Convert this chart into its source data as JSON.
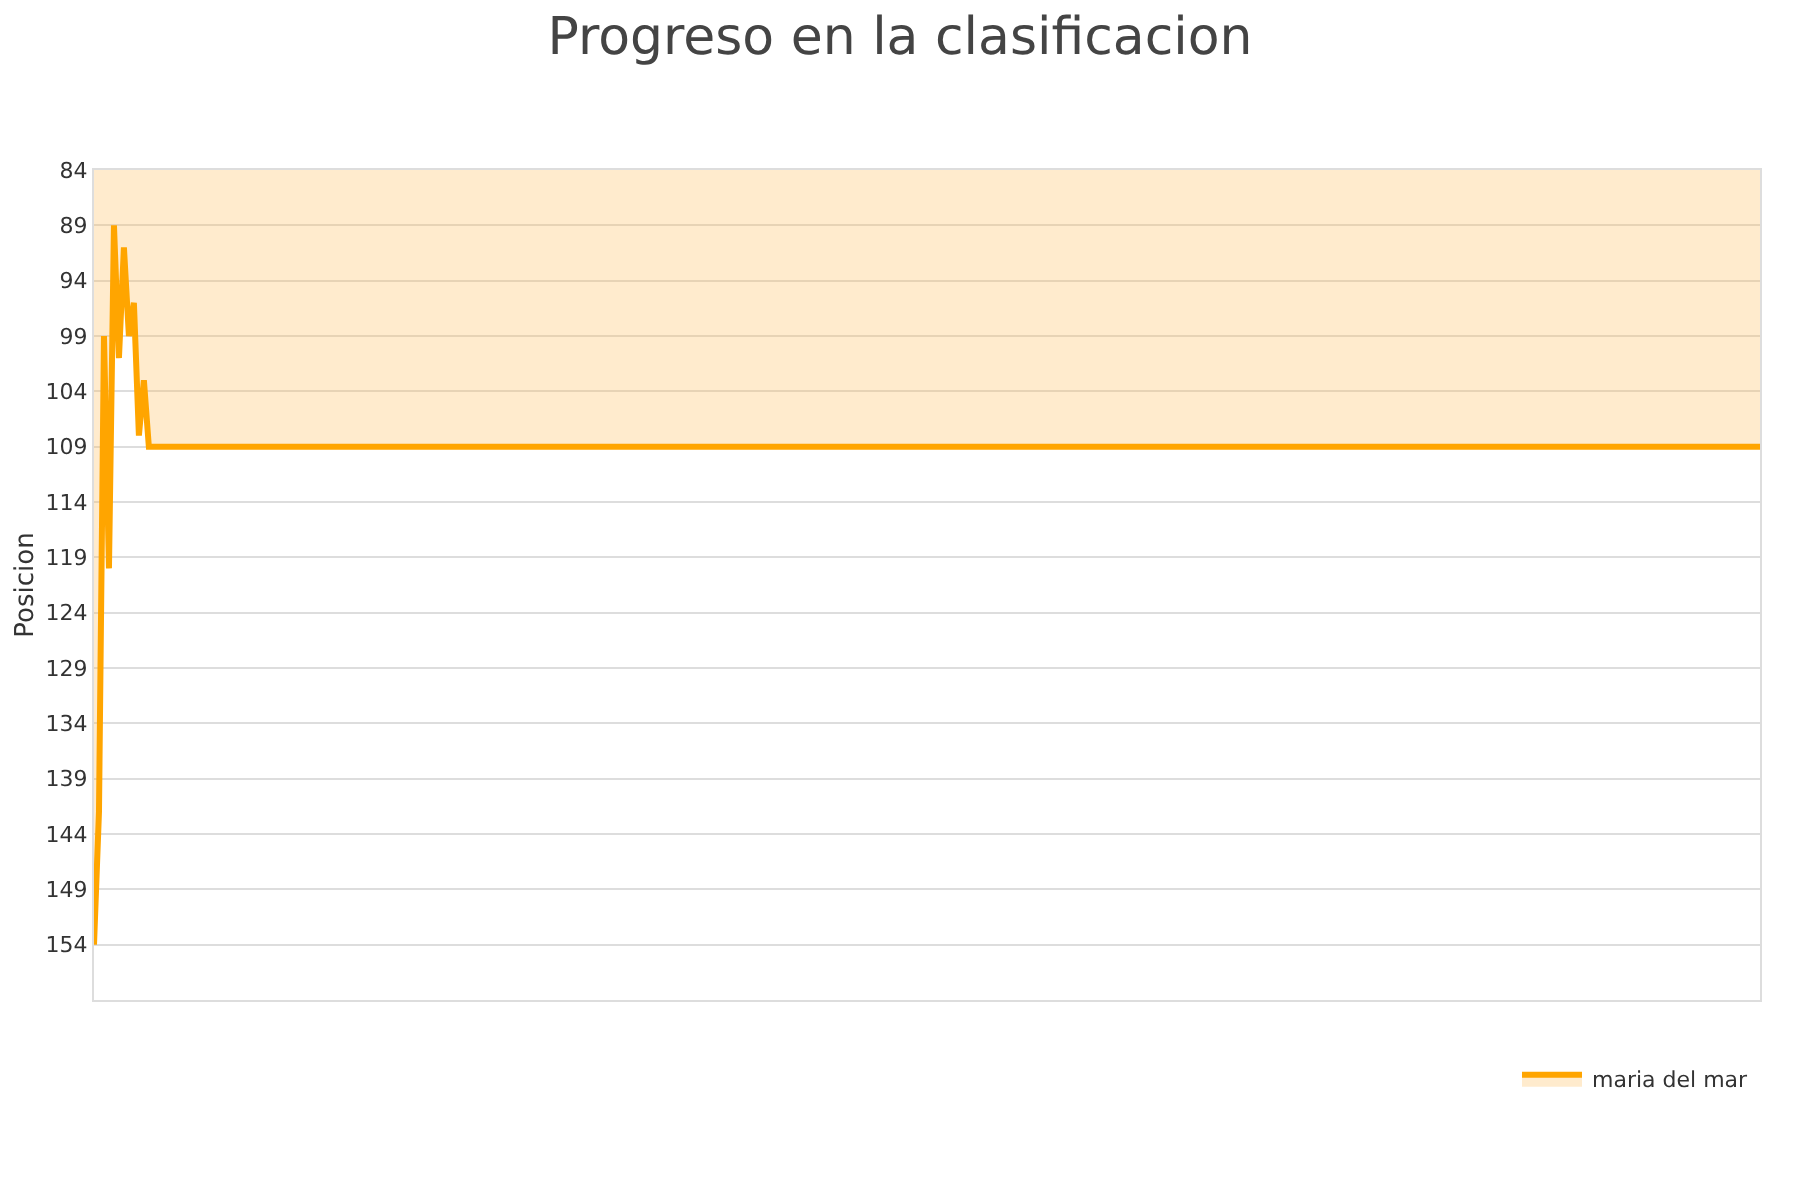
{
  "chart_data": {
    "type": "area",
    "title": "Progreso en la clasificacion",
    "ylabel": "Posicion",
    "categories": [
      null,
      null,
      null,
      null,
      null,
      null,
      null,
      null,
      null,
      null,
      null,
      null,
      null,
      null,
      null,
      null,
      null,
      null,
      null,
      null,
      null,
      null,
      null,
      null,
      null,
      null,
      null,
      null,
      null,
      null,
      null,
      null,
      null,
      null,
      null,
      null,
      null,
      null,
      null,
      null,
      null,
      null,
      null,
      null,
      null,
      null,
      null,
      null,
      null,
      null,
      null,
      null,
      null,
      null,
      null,
      null,
      null,
      null,
      null,
      null,
      null,
      null,
      null,
      null,
      null,
      null,
      null,
      null,
      null,
      null,
      null,
      null,
      null,
      null,
      null,
      null,
      null,
      null,
      null,
      null,
      null,
      null,
      null,
      null,
      null,
      null,
      null,
      null,
      null,
      null,
      null,
      null,
      null,
      null,
      null,
      null,
      null,
      null,
      null,
      null,
      null,
      null,
      null,
      null,
      null,
      null,
      null,
      null,
      null,
      null,
      null,
      null,
      null,
      null,
      null,
      null,
      null,
      null,
      null,
      null,
      null,
      null,
      null,
      null,
      null,
      null,
      null,
      null,
      null,
      null,
      null,
      null,
      null,
      null,
      null,
      null,
      null,
      null,
      null,
      null,
      null,
      null,
      null,
      null,
      null,
      null,
      null,
      null,
      null,
      null,
      null,
      null,
      null,
      null,
      null,
      null,
      null,
      null,
      null,
      null,
      null,
      null,
      null,
      null,
      null,
      null,
      null,
      null,
      null,
      null,
      null,
      null,
      null,
      null,
      null,
      null,
      null,
      null,
      null,
      null,
      null,
      null,
      null,
      null,
      null,
      null,
      null,
      null,
      null,
      null,
      null,
      null,
      null,
      null,
      null,
      null,
      null,
      null,
      null,
      null,
      null,
      null,
      null,
      null,
      null,
      null,
      null,
      null,
      null,
      null,
      null,
      null,
      null,
      null,
      null,
      null,
      null,
      null,
      null,
      null,
      null,
      null,
      null,
      null,
      null,
      null,
      null,
      null,
      null,
      null,
      null,
      null,
      null,
      null,
      null,
      null,
      null,
      null,
      null,
      null,
      null,
      null,
      null,
      null,
      null,
      null,
      null,
      null,
      null,
      null,
      null,
      null,
      null,
      null,
      null,
      null,
      null,
      null,
      null,
      null,
      null,
      null,
      null,
      null,
      null,
      null,
      null,
      null,
      null,
      null,
      null,
      null,
      null,
      null,
      null,
      null,
      null,
      null,
      null,
      null,
      null,
      null,
      null,
      null,
      null,
      null,
      null,
      null,
      null,
      null,
      null,
      null,
      null,
      null,
      null,
      null,
      null,
      null,
      null,
      null,
      null,
      null,
      null,
      null,
      null,
      null,
      null,
      null,
      null,
      null,
      null,
      null,
      null,
      null,
      null,
      null,
      null,
      null,
      null,
      null,
      null,
      null,
      null,
      null,
      null,
      null,
      null,
      null,
      null,
      null,
      null,
      null,
      null,
      null,
      null
    ],
    "series": [
      {
        "name": "maria del mar",
        "color": "#ffa500",
        "values": [
          154,
          142,
          99,
          120,
          89,
          101,
          91,
          99,
          96,
          108,
          103,
          109,
          109,
          109,
          109,
          109,
          109,
          109,
          109,
          109,
          109,
          109,
          109,
          109,
          109,
          109,
          109,
          109,
          109,
          109,
          109,
          109,
          109,
          109,
          109,
          109,
          109,
          109,
          109,
          109,
          109,
          109,
          109,
          109,
          109,
          109,
          109,
          109,
          109,
          109,
          109,
          109,
          109,
          109,
          109,
          109,
          109,
          109,
          109,
          109,
          109,
          109,
          109,
          109,
          109,
          109,
          109,
          109,
          109,
          109,
          109,
          109,
          109,
          109,
          109,
          109,
          109,
          109,
          109,
          109,
          109,
          109,
          109,
          109,
          109,
          109,
          109,
          109,
          109,
          109,
          109,
          109,
          109,
          109,
          109,
          109,
          109,
          109,
          109,
          109,
          109,
          109,
          109,
          109,
          109,
          109,
          109,
          109,
          109,
          109,
          109,
          109,
          109,
          109,
          109,
          109,
          109,
          109,
          109,
          109,
          109,
          109,
          109,
          109,
          109,
          109,
          109,
          109,
          109,
          109,
          109,
          109,
          109,
          109,
          109,
          109,
          109,
          109,
          109,
          109,
          109,
          109,
          109,
          109,
          109,
          109,
          109,
          109,
          109,
          109,
          109,
          109,
          109,
          109,
          109,
          109,
          109,
          109,
          109,
          109,
          109,
          109,
          109,
          109,
          109,
          109,
          109,
          109,
          109,
          109,
          109,
          109,
          109,
          109,
          109,
          109,
          109,
          109,
          109,
          109,
          109,
          109,
          109,
          109,
          109,
          109,
          109,
          109,
          109,
          109,
          109,
          109,
          109,
          109,
          109,
          109,
          109,
          109,
          109,
          109,
          109,
          109,
          109,
          109,
          109,
          109,
          109,
          109,
          109,
          109,
          109,
          109,
          109,
          109,
          109,
          109,
          109,
          109,
          109,
          109,
          109,
          109,
          109,
          109,
          109,
          109,
          109,
          109,
          109,
          109,
          109,
          109,
          109,
          109,
          109,
          109,
          109,
          109,
          109,
          109,
          109,
          109,
          109,
          109,
          109,
          109,
          109,
          109,
          109,
          109,
          109,
          109,
          109,
          109,
          109,
          109,
          109,
          109,
          109,
          109,
          109,
          109,
          109,
          109,
          109,
          109,
          109,
          109,
          109,
          109,
          109,
          109,
          109,
          109,
          109,
          109,
          109,
          109,
          109,
          109,
          109,
          109,
          109,
          109,
          109,
          109,
          109,
          109,
          109,
          109,
          109,
          109,
          109,
          109,
          109,
          109,
          109,
          109,
          109,
          109,
          109,
          109,
          109,
          109,
          109,
          109,
          109,
          109,
          109,
          109,
          109,
          109,
          109,
          109,
          109,
          109,
          109,
          109,
          109,
          109,
          109,
          109,
          109,
          109,
          109,
          109,
          109,
          109,
          109,
          109,
          109,
          109,
          109,
          109,
          109
        ]
      }
    ],
    "ylim": [
      159,
      84
    ],
    "yticks": [
      84,
      89,
      94,
      99,
      104,
      109,
      114,
      119,
      124,
      129,
      134,
      139,
      144,
      149,
      154
    ],
    "tick_labels": "y",
    "grid": "y",
    "legend": "bottom right",
    "marker": "none",
    "line_style": "solid"
  }
}
